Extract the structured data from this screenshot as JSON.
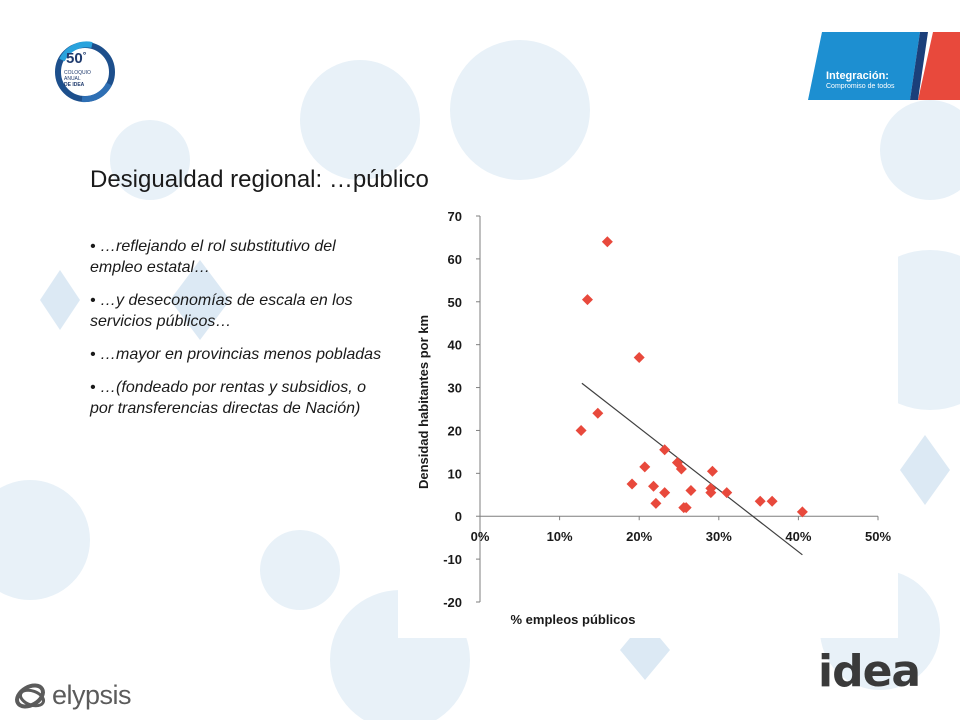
{
  "header": {
    "logo_number": "50",
    "logo_superscript": "°",
    "logo_lines": [
      "COLOQUIO",
      "ANUAL",
      "DE IDEA"
    ],
    "banner_title": "Integración:",
    "banner_subtitle": "Compromiso de todos"
  },
  "slide": {
    "title": "Desigualdad regional: …público",
    "bullets": [
      "• …reflejando el rol substitutivo del empleo estatal…",
      "• …y deseconomías de escala en los servicios públicos…",
      "• …mayor en provincias menos pobladas",
      "• …(fondeado por rentas y subsidios, o por transferencias directas de Nación)"
    ]
  },
  "footer": {
    "left_brand": "elypsis",
    "right_brand": "idea"
  },
  "chart_data": {
    "type": "scatter",
    "xlabel": "% empleos públicos",
    "ylabel": "Densidad habitantes por km",
    "xlim": [
      0,
      0.5
    ],
    "ylim": [
      -20,
      70
    ],
    "x_ticks": [
      "0%",
      "10%",
      "20%",
      "30%",
      "40%",
      "50%"
    ],
    "y_ticks": [
      "-20",
      "-10",
      "0",
      "10",
      "20",
      "30",
      "40",
      "50",
      "60",
      "70"
    ],
    "marker_color": "#e8493c",
    "trend_color": "#404040",
    "points": [
      {
        "x": 0.16,
        "y": 64
      },
      {
        "x": 0.135,
        "y": 50.5
      },
      {
        "x": 0.2,
        "y": 37
      },
      {
        "x": 0.148,
        "y": 24
      },
      {
        "x": 0.127,
        "y": 20
      },
      {
        "x": 0.232,
        "y": 15.5
      },
      {
        "x": 0.207,
        "y": 11.5
      },
      {
        "x": 0.248,
        "y": 12.5
      },
      {
        "x": 0.253,
        "y": 11
      },
      {
        "x": 0.292,
        "y": 10.5
      },
      {
        "x": 0.191,
        "y": 7.5
      },
      {
        "x": 0.218,
        "y": 7
      },
      {
        "x": 0.232,
        "y": 5.5
      },
      {
        "x": 0.265,
        "y": 6
      },
      {
        "x": 0.29,
        "y": 6.5
      },
      {
        "x": 0.29,
        "y": 5.5
      },
      {
        "x": 0.31,
        "y": 5.5
      },
      {
        "x": 0.221,
        "y": 3
      },
      {
        "x": 0.256,
        "y": 2
      },
      {
        "x": 0.259,
        "y": 2
      },
      {
        "x": 0.352,
        "y": 3.5
      },
      {
        "x": 0.367,
        "y": 3.5
      },
      {
        "x": 0.405,
        "y": 1
      }
    ],
    "trendline": {
      "x": [
        0.128,
        0.405
      ],
      "y": [
        31,
        -9
      ]
    },
    "grid": false,
    "legend": "none"
  }
}
